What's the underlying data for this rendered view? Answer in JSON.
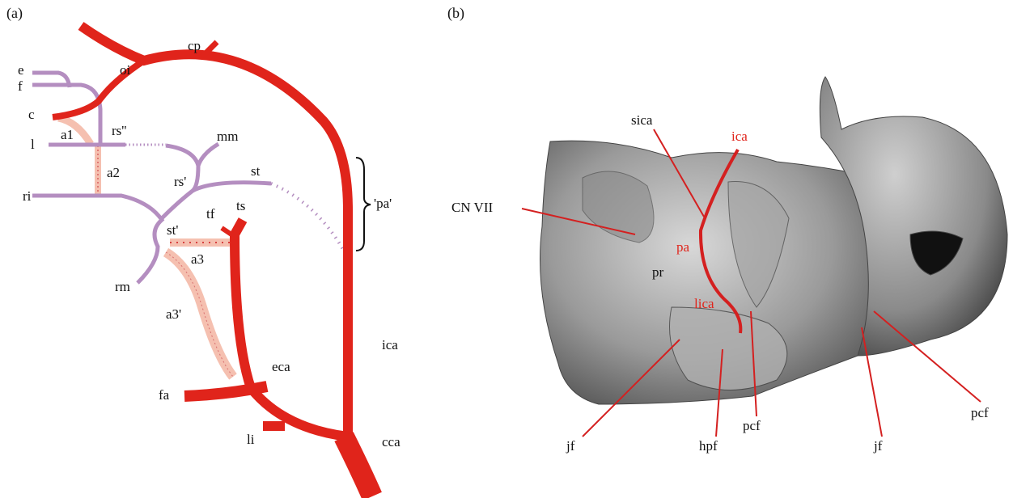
{
  "panels": [
    {
      "label": "(a)",
      "labels": [
        "cp",
        "oi",
        "e",
        "f",
        "c",
        "a1",
        "rs''",
        "l",
        "mm",
        "a2",
        "rs'",
        "st",
        "ri",
        "tf",
        "ts",
        "'pa'",
        "st'",
        "a3",
        "rm",
        "a3'",
        "ica",
        "eca",
        "fa",
        "li",
        "cca"
      ]
    },
    {
      "label": "(b)",
      "labels": [
        "sica",
        "ica",
        "CN VII",
        "pa",
        "pr",
        "lica",
        "jf",
        "hpf",
        "pcf",
        "jf",
        "pcf"
      ]
    }
  ]
}
